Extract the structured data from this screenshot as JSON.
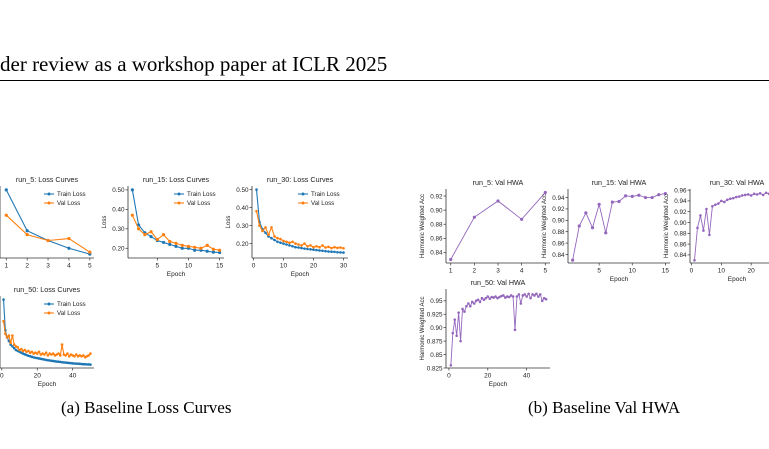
{
  "header": {
    "text": "der review as a workshop paper at ICLR 2025"
  },
  "captions": {
    "a": "(a) Baseline Loss Curves",
    "b": "(b) Baseline Val HWA"
  },
  "colors": {
    "train": "#1f77b4",
    "val": "#ff7f0e",
    "hwa": "#9467bd"
  },
  "chart_data": [
    {
      "id": "run5-loss",
      "type": "line",
      "title": "run_5: Loss Curves",
      "xlabel": "",
      "ylabel": "",
      "xlim": [
        0.7,
        5.2
      ],
      "ylim": [
        0.15,
        0.52
      ],
      "xticks": [
        1,
        2,
        3,
        4,
        5
      ],
      "yticks": [],
      "legend": "top-right",
      "series": [
        {
          "name": "Train Loss",
          "x": [
            1,
            2,
            3,
            4,
            5
          ],
          "y": [
            0.5,
            0.29,
            0.24,
            0.2,
            0.17
          ]
        },
        {
          "name": "Val Loss",
          "x": [
            1,
            2,
            3,
            4,
            5
          ],
          "y": [
            0.37,
            0.27,
            0.24,
            0.25,
            0.18
          ]
        }
      ]
    },
    {
      "id": "run15-loss",
      "type": "line",
      "title": "run_15: Loss Curves",
      "xlabel": "Epoch",
      "ylabel": "Loss",
      "xlim": [
        0.3,
        15.7
      ],
      "ylim": [
        0.15,
        0.52
      ],
      "xticks": [
        5,
        10,
        15
      ],
      "yticks": [
        0.2,
        0.3,
        0.4,
        0.5
      ],
      "legend": "top-right",
      "series": [
        {
          "name": "Train Loss",
          "x": [
            1,
            2,
            3,
            4,
            5,
            6,
            7,
            8,
            9,
            10,
            11,
            12,
            13,
            14,
            15
          ],
          "y": [
            0.5,
            0.32,
            0.28,
            0.26,
            0.24,
            0.23,
            0.22,
            0.21,
            0.2,
            0.2,
            0.19,
            0.19,
            0.185,
            0.18,
            0.178
          ]
        },
        {
          "name": "Val Loss",
          "x": [
            1,
            2,
            3,
            4,
            5,
            6,
            7,
            8,
            9,
            10,
            11,
            12,
            13,
            14,
            15
          ],
          "y": [
            0.37,
            0.3,
            0.27,
            0.285,
            0.245,
            0.27,
            0.235,
            0.225,
            0.215,
            0.21,
            0.205,
            0.2,
            0.215,
            0.195,
            0.19
          ]
        }
      ]
    },
    {
      "id": "run30-loss",
      "type": "line",
      "title": "run_30: Loss Curves",
      "xlabel": "Epoch",
      "ylabel": "Loss",
      "xlim": [
        -0.5,
        31.5
      ],
      "ylim": [
        0.12,
        0.52
      ],
      "xticks": [
        0,
        10,
        20,
        30
      ],
      "yticks": [
        0.2,
        0.3,
        0.4,
        0.5
      ],
      "legend": "top-right",
      "series": [
        {
          "name": "Train Loss",
          "x": [
            1,
            2,
            3,
            4,
            5,
            6,
            7,
            8,
            9,
            10,
            11,
            12,
            13,
            14,
            15,
            16,
            17,
            18,
            19,
            20,
            21,
            22,
            23,
            24,
            25,
            26,
            27,
            28,
            29,
            30
          ],
          "y": [
            0.5,
            0.32,
            0.28,
            0.26,
            0.24,
            0.23,
            0.22,
            0.21,
            0.205,
            0.2,
            0.195,
            0.19,
            0.185,
            0.18,
            0.178,
            0.175,
            0.172,
            0.17,
            0.168,
            0.166,
            0.164,
            0.162,
            0.16,
            0.158,
            0.156,
            0.155,
            0.154,
            0.152,
            0.151,
            0.15
          ]
        },
        {
          "name": "Val Loss",
          "x": [
            1,
            2,
            3,
            4,
            5,
            6,
            7,
            8,
            9,
            10,
            11,
            12,
            13,
            14,
            15,
            16,
            17,
            18,
            19,
            20,
            21,
            22,
            23,
            24,
            25,
            26,
            27,
            28,
            29,
            30
          ],
          "y": [
            0.38,
            0.3,
            0.27,
            0.29,
            0.25,
            0.29,
            0.24,
            0.23,
            0.225,
            0.215,
            0.21,
            0.205,
            0.21,
            0.2,
            0.195,
            0.19,
            0.2,
            0.185,
            0.19,
            0.18,
            0.185,
            0.18,
            0.19,
            0.178,
            0.182,
            0.175,
            0.18,
            0.176,
            0.178,
            0.174
          ]
        }
      ]
    },
    {
      "id": "run50-loss",
      "type": "line",
      "title": "run_50: Loss Curves",
      "xlabel": "Epoch",
      "ylabel": "",
      "xlim": [
        -1,
        52
      ],
      "ylim": [
        0.12,
        0.52
      ],
      "xticks": [
        0,
        20,
        40
      ],
      "yticks": [],
      "legend": "top-right",
      "series": [
        {
          "name": "Train Loss",
          "x": [
            1,
            2,
            3,
            4,
            5,
            6,
            7,
            8,
            9,
            10,
            11,
            12,
            13,
            14,
            15,
            16,
            17,
            18,
            19,
            20,
            21,
            22,
            23,
            24,
            25,
            26,
            27,
            28,
            29,
            30,
            31,
            32,
            33,
            34,
            35,
            36,
            37,
            38,
            39,
            40,
            41,
            42,
            43,
            44,
            45,
            46,
            47,
            48,
            49,
            50
          ],
          "y": [
            0.5,
            0.33,
            0.29,
            0.27,
            0.25,
            0.24,
            0.23,
            0.22,
            0.215,
            0.21,
            0.205,
            0.2,
            0.196,
            0.192,
            0.188,
            0.185,
            0.182,
            0.179,
            0.177,
            0.175,
            0.173,
            0.171,
            0.169,
            0.167,
            0.165,
            0.163,
            0.162,
            0.16,
            0.159,
            0.157,
            0.156,
            0.155,
            0.154,
            0.152,
            0.151,
            0.15,
            0.149,
            0.148,
            0.147,
            0.146,
            0.145,
            0.144,
            0.144,
            0.143,
            0.142,
            0.141,
            0.141,
            0.14,
            0.14,
            0.139
          ]
        },
        {
          "name": "Val Loss",
          "x": [
            1,
            2,
            3,
            4,
            5,
            6,
            7,
            8,
            9,
            10,
            11,
            12,
            13,
            14,
            15,
            16,
            17,
            18,
            19,
            20,
            21,
            22,
            23,
            24,
            25,
            26,
            27,
            28,
            29,
            30,
            31,
            32,
            33,
            34,
            35,
            36,
            37,
            38,
            39,
            40,
            41,
            42,
            43,
            44,
            45,
            46,
            47,
            48,
            49,
            50
          ],
          "y": [
            0.38,
            0.31,
            0.29,
            0.3,
            0.26,
            0.3,
            0.25,
            0.24,
            0.235,
            0.22,
            0.225,
            0.215,
            0.22,
            0.21,
            0.215,
            0.205,
            0.21,
            0.2,
            0.205,
            0.2,
            0.21,
            0.195,
            0.2,
            0.195,
            0.205,
            0.19,
            0.2,
            0.195,
            0.2,
            0.19,
            0.195,
            0.2,
            0.19,
            0.25,
            0.195,
            0.19,
            0.2,
            0.185,
            0.195,
            0.19,
            0.185,
            0.195,
            0.185,
            0.19,
            0.185,
            0.19,
            0.18,
            0.185,
            0.19,
            0.2
          ]
        }
      ]
    },
    {
      "id": "run5-hwa",
      "type": "line",
      "title": "run_5: Val HWA",
      "xlabel": "",
      "ylabel": "Harmonic Weighted Acc",
      "xlim": [
        0.8,
        5.2
      ],
      "ylim": [
        0.825,
        0.93
      ],
      "xticks": [
        1,
        2,
        3,
        4,
        5
      ],
      "yticks": [
        0.84,
        0.86,
        0.88,
        0.9,
        0.92
      ],
      "series": [
        {
          "name": "",
          "x": [
            1,
            2,
            3,
            4,
            5
          ],
          "y": [
            0.83,
            0.89,
            0.913,
            0.887,
            0.925
          ]
        }
      ]
    },
    {
      "id": "run15-hwa",
      "type": "line",
      "title": "run_15: Val HWA",
      "xlabel": "Epoch",
      "ylabel": "Harmonic Weighted Acc",
      "xlim": [
        0.3,
        15.7
      ],
      "ylim": [
        0.825,
        0.955
      ],
      "xticks": [
        5,
        10,
        15
      ],
      "yticks": [
        0.84,
        0.86,
        0.88,
        0.9,
        0.92,
        0.94
      ],
      "series": [
        {
          "name": "",
          "x": [
            1,
            2,
            3,
            4,
            5,
            6,
            7,
            8,
            9,
            10,
            11,
            12,
            13,
            14,
            15
          ],
          "y": [
            0.83,
            0.89,
            0.913,
            0.887,
            0.928,
            0.878,
            0.932,
            0.933,
            0.943,
            0.942,
            0.944,
            0.94,
            0.94,
            0.945,
            0.947
          ]
        }
      ]
    },
    {
      "id": "run30-hwa",
      "type": "line",
      "title": "run_30: Val HWA",
      "xlabel": "Epoch",
      "ylabel": "Harmonic Weighted Acc",
      "xlim": [
        -0.5,
        31
      ],
      "ylim": [
        0.825,
        0.962
      ],
      "xticks": [
        0,
        10,
        20
      ],
      "yticks": [
        0.84,
        0.86,
        0.88,
        0.9,
        0.92,
        0.94,
        0.96
      ],
      "series": [
        {
          "name": "",
          "x": [
            1,
            2,
            3,
            4,
            5,
            6,
            7,
            8,
            9,
            10,
            11,
            12,
            13,
            14,
            15,
            16,
            17,
            18,
            19,
            20,
            21,
            22,
            23,
            24,
            25,
            26,
            27,
            28,
            29,
            30
          ],
          "y": [
            0.83,
            0.89,
            0.913,
            0.885,
            0.925,
            0.877,
            0.93,
            0.933,
            0.935,
            0.94,
            0.938,
            0.942,
            0.944,
            0.945,
            0.947,
            0.948,
            0.95,
            0.951,
            0.952,
            0.95,
            0.953,
            0.952,
            0.954,
            0.951,
            0.955,
            0.953,
            0.954,
            0.952,
            0.955,
            0.954
          ]
        }
      ]
    },
    {
      "id": "run50-hwa",
      "type": "line",
      "title": "run_50: Val HWA",
      "xlabel": "Epoch",
      "ylabel": "Harmonic Weighted Acc",
      "xlim": [
        -1.5,
        52
      ],
      "ylim": [
        0.825,
        0.972
      ],
      "xticks": [
        0,
        20,
        40
      ],
      "yticks": [
        0.825,
        0.85,
        0.875,
        0.9,
        0.925,
        0.95
      ],
      "series": [
        {
          "name": "",
          "x": [
            1,
            2,
            3,
            4,
            5,
            6,
            7,
            8,
            9,
            10,
            11,
            12,
            13,
            14,
            15,
            16,
            17,
            18,
            19,
            20,
            21,
            22,
            23,
            24,
            25,
            26,
            27,
            28,
            29,
            30,
            31,
            32,
            33,
            34,
            35,
            36,
            37,
            38,
            39,
            40,
            41,
            42,
            43,
            44,
            45,
            46,
            47,
            48,
            49,
            50
          ],
          "y": [
            0.83,
            0.89,
            0.915,
            0.885,
            0.928,
            0.875,
            0.935,
            0.93,
            0.94,
            0.945,
            0.94,
            0.948,
            0.945,
            0.95,
            0.952,
            0.948,
            0.955,
            0.952,
            0.955,
            0.958,
            0.954,
            0.957,
            0.956,
            0.958,
            0.955,
            0.957,
            0.959,
            0.96,
            0.956,
            0.958,
            0.957,
            0.96,
            0.958,
            0.896,
            0.958,
            0.962,
            0.945,
            0.96,
            0.962,
            0.958,
            0.963,
            0.955,
            0.962,
            0.96,
            0.963,
            0.958,
            0.962,
            0.95,
            0.955,
            0.953
          ]
        }
      ]
    }
  ]
}
